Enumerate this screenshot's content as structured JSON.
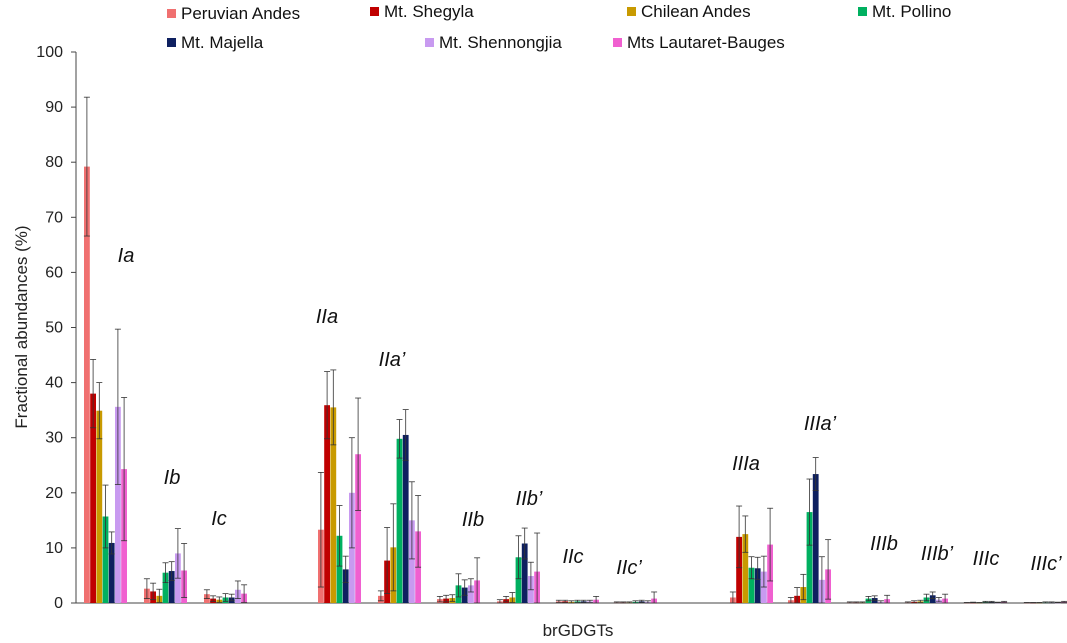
{
  "chart_data": {
    "type": "bar",
    "xlabel": "brGDGTs",
    "ylabel": "Fractional abundances (%)",
    "ylim": [
      0,
      100
    ],
    "yticks": [
      0,
      10,
      20,
      30,
      40,
      50,
      60,
      70,
      80,
      90,
      100
    ],
    "grid": false,
    "legend": "top",
    "categories": [
      "Ia",
      "Ib",
      "Ic",
      "IIa",
      "IIa’",
      "IIb",
      "IIb’",
      "IIc",
      "IIc’",
      "IIIa",
      "IIIa’",
      "IIIb",
      "IIIb’",
      "IIIc",
      "IIIc’"
    ],
    "series": [
      {
        "name": "Peruvian Andes",
        "color": "#f07070",
        "values": [
          79.2,
          2.6,
          1.6,
          13.3,
          1.3,
          0.7,
          0.3,
          0.3,
          0.1,
          1.0,
          0.5,
          0.1,
          0.1,
          0.05,
          0.05
        ],
        "errors": [
          12.6,
          1.8,
          0.8,
          10.4,
          0.9,
          0.5,
          0.3,
          0.2,
          0.1,
          1.0,
          0.5,
          0.1,
          0.1,
          0.05,
          0.05
        ]
      },
      {
        "name": "Mt. Shegyla",
        "color": "#c00000",
        "values": [
          38.0,
          2.1,
          0.8,
          35.9,
          7.7,
          0.8,
          0.7,
          0.3,
          0.1,
          12.0,
          1.3,
          0.1,
          0.2,
          0.1,
          0.05
        ],
        "errors": [
          6.2,
          1.5,
          0.5,
          6.1,
          6.0,
          0.6,
          0.5,
          0.2,
          0.1,
          5.6,
          1.5,
          0.1,
          0.2,
          0.05,
          0.05
        ]
      },
      {
        "name": "Chilean Andes",
        "color": "#c89a00",
        "values": [
          34.9,
          1.3,
          0.6,
          35.5,
          10.1,
          0.9,
          1.0,
          0.2,
          0.1,
          12.5,
          2.9,
          0.1,
          0.3,
          0.05,
          0.05
        ],
        "errors": [
          5.1,
          1.2,
          0.5,
          6.8,
          7.9,
          0.6,
          0.9,
          0.2,
          0.1,
          3.3,
          2.3,
          0.1,
          0.2,
          0.05,
          0.05
        ]
      },
      {
        "name": "Mt. Pollino",
        "color": "#00b060",
        "values": [
          15.7,
          5.5,
          1.0,
          12.2,
          29.8,
          3.2,
          8.3,
          0.3,
          0.2,
          6.4,
          16.5,
          0.8,
          1.0,
          0.2,
          0.1
        ],
        "errors": [
          5.7,
          1.8,
          0.7,
          5.5,
          3.5,
          2.1,
          3.9,
          0.2,
          0.2,
          2.0,
          6.0,
          0.4,
          0.6,
          0.1,
          0.1
        ]
      },
      {
        "name": "Mt. Majella",
        "color": "#0e2060",
        "values": [
          10.9,
          5.8,
          1.0,
          6.1,
          30.5,
          2.8,
          10.8,
          0.3,
          0.3,
          6.3,
          23.4,
          0.9,
          1.4,
          0.2,
          0.1
        ],
        "errors": [
          2.0,
          1.7,
          0.6,
          2.4,
          4.6,
          1.4,
          2.8,
          0.2,
          0.2,
          2.0,
          3.0,
          0.4,
          0.6,
          0.1,
          0.1
        ]
      },
      {
        "name": "Mt. Shennongjia",
        "color": "#c89af0",
        "values": [
          35.6,
          9.0,
          2.4,
          20.0,
          15.0,
          3.2,
          4.9,
          0.3,
          0.2,
          5.7,
          4.2,
          0.2,
          0.6,
          0.1,
          0.1
        ],
        "errors": [
          14.1,
          4.5,
          1.6,
          10.0,
          7.0,
          1.2,
          2.5,
          0.2,
          0.2,
          2.8,
          4.2,
          0.2,
          0.4,
          0.05,
          0.05
        ]
      },
      {
        "name": "Mts Lautaret-Bauges",
        "color": "#f060d0",
        "values": [
          24.3,
          5.9,
          1.7,
          27.0,
          13.0,
          4.1,
          5.7,
          0.6,
          0.8,
          10.6,
          6.1,
          0.7,
          0.8,
          0.2,
          0.2
        ],
        "errors": [
          13.0,
          4.9,
          1.6,
          10.2,
          6.5,
          4.1,
          7.0,
          0.6,
          1.2,
          6.6,
          5.4,
          0.7,
          0.8,
          0.1,
          0.1
        ]
      }
    ]
  }
}
